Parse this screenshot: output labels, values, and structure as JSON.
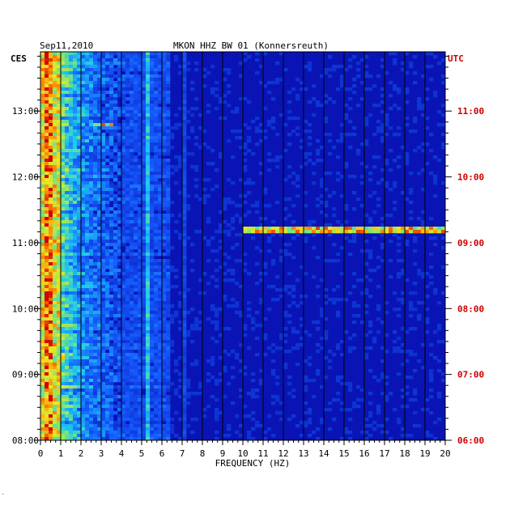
{
  "header": {
    "date": "Sep11,2010",
    "station": "MKON HHZ BW 01 (Konnersreuth)",
    "left_zone": "CES",
    "right_zone": "UTC"
  },
  "chart_data": {
    "type": "heatmap",
    "title": "MKON HHZ BW 01 (Konnersreuth)",
    "subtitle": "Sep11,2010",
    "xlabel": "FREQUENCY (HZ)",
    "xlim": [
      0,
      20
    ],
    "x_ticks": [
      "0",
      "1",
      "2",
      "3",
      "4",
      "5",
      "6",
      "7",
      "8",
      "9",
      "10",
      "11",
      "12",
      "13",
      "14",
      "15",
      "16",
      "17",
      "18",
      "19",
      "20"
    ],
    "ylim_local_hours": [
      8.0,
      13.9
    ],
    "left_axis": {
      "label": "CES",
      "ticks": [
        {
          "label": "13:00",
          "hour": 13
        },
        {
          "label": "12:00",
          "hour": 12
        },
        {
          "label": "11:00",
          "hour": 11
        },
        {
          "label": "10:00",
          "hour": 10
        },
        {
          "label": "09:00",
          "hour": 9
        },
        {
          "label": "08:00",
          "hour": 8
        }
      ]
    },
    "right_axis": {
      "label": "UTC",
      "ticks": [
        {
          "label": "11:00",
          "hour": 13
        },
        {
          "label": "10:00",
          "hour": 12
        },
        {
          "label": "09:00",
          "hour": 11
        },
        {
          "label": "08:00",
          "hour": 10
        },
        {
          "label": "07:00",
          "hour": 9
        },
        {
          "label": "06:00",
          "hour": 8
        }
      ]
    },
    "background_color": "#0a14b4",
    "right_axis_color": "#cc0000",
    "features": [
      {
        "name": "low-frequency band",
        "freq_range": [
          0.2,
          1.0
        ],
        "intensity": "high"
      },
      {
        "name": "spectral line",
        "freq": 5.3,
        "intensity": "medium"
      },
      {
        "name": "spectral line",
        "freq": 7.1,
        "intensity": "low"
      },
      {
        "name": "narrowband signal",
        "freq_range": [
          10.0,
          20.0
        ],
        "hour": 11.2,
        "intensity": "high"
      },
      {
        "name": "burst",
        "freq_range": [
          2.6,
          3.5
        ],
        "hour": 12.78,
        "intensity": "high"
      }
    ]
  }
}
